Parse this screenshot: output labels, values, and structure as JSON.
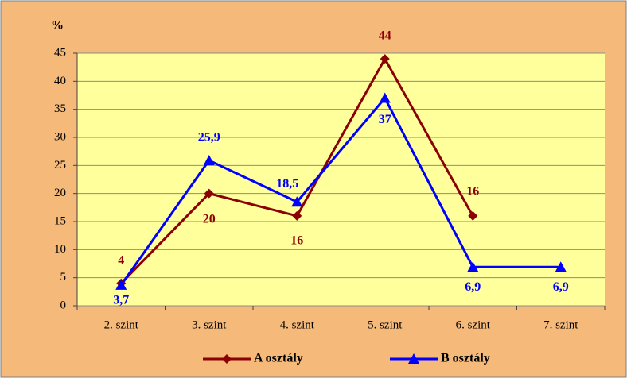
{
  "chart_data": {
    "type": "line",
    "y_label": "%",
    "categories": [
      "2. szint",
      "3. szint",
      "4. szint",
      "5. szint",
      "6. szint",
      "7. szint"
    ],
    "series": [
      {
        "name": "A osztály",
        "color": "#8b0000",
        "marker": "diamond",
        "values": [
          4,
          20,
          16,
          44,
          16,
          null
        ]
      },
      {
        "name": "B osztály",
        "color": "#0000ff",
        "marker": "triangle",
        "values": [
          3.7,
          25.9,
          18.5,
          37,
          6.9,
          6.9
        ],
        "value_labels": [
          "3,7",
          "25,9",
          "18,5",
          "37",
          "6,9",
          "6,9"
        ]
      }
    ],
    "ylim": [
      0,
      45
    ],
    "yticks": [
      0,
      5,
      10,
      15,
      20,
      25,
      30,
      35,
      40,
      45
    ],
    "grid": true,
    "legend": "bottom"
  }
}
